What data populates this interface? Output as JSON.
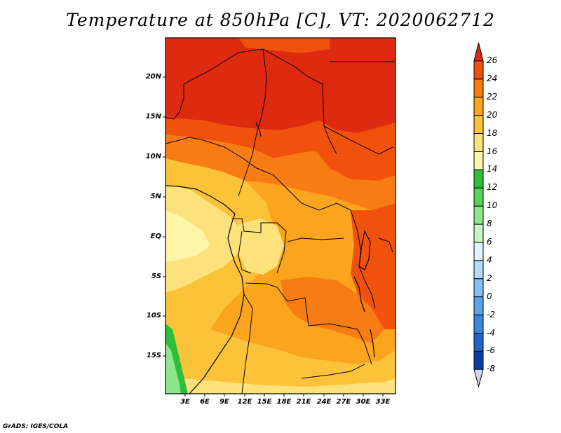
{
  "title": "Temperature at 850hPa [C], VT: 2020062712",
  "credit": "GrADS: IGES/COLA",
  "lat_labels": [
    "20N",
    "15N",
    "10N",
    "5N",
    "EQ",
    "5S",
    "10S",
    "15S"
  ],
  "lon_labels": [
    "3E",
    "6E",
    "9E",
    "12E",
    "15E",
    "18E",
    "21E",
    "24E",
    "27E",
    "30E",
    "33E"
  ],
  "colorbar": {
    "labels": [
      "26",
      "24",
      "22",
      "20",
      "18",
      "16",
      "14",
      "12",
      "10",
      "8",
      "6",
      "4",
      "2",
      "0",
      "-2",
      "-4",
      "-6",
      "-8"
    ],
    "colors": [
      "#dd2a11",
      "#f0520e",
      "#f77c14",
      "#fba51f",
      "#fcc23a",
      "#fde27b",
      "#fff5a8",
      "#2fbe3c",
      "#5ad25a",
      "#8de68d",
      "#c6f5c6",
      "#e0f4ff",
      "#b4dcf6",
      "#82c0f2",
      "#5aa4ec",
      "#3a86e0",
      "#1e64cc",
      "#0c3aa6",
      "#081a6e"
    ]
  },
  "map_colors": {
    "hot": "#dd2a11",
    "warm": "#f0520e",
    "orange": "#f77c14",
    "lightorange": "#fba51f",
    "yellow": "#fcc23a",
    "paleyellow": "#fde27b",
    "cream": "#fff5a8",
    "green": "#5ad25a",
    "darkgreen": "#2fbe3c"
  }
}
